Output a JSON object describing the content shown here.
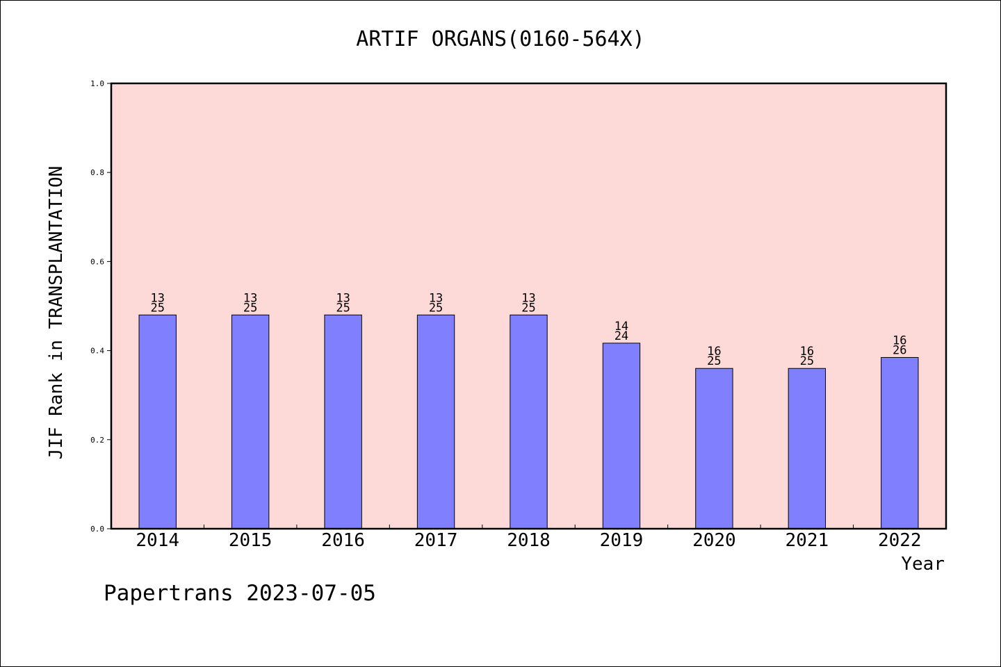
{
  "chart_data": {
    "type": "bar",
    "title": "ARTIF ORGANS(0160-564X)",
    "xlabel": "Year",
    "ylabel": "JIF Rank in TRANSPLANTATION",
    "ylim": [
      0.0,
      1.0
    ],
    "yticks": [
      "0.0",
      "0.2",
      "0.4",
      "0.6",
      "0.8",
      "1.0"
    ],
    "categories": [
      "2014",
      "2015",
      "2016",
      "2017",
      "2018",
      "2019",
      "2020",
      "2021",
      "2022"
    ],
    "values": [
      0.48,
      0.48,
      0.48,
      0.48,
      0.48,
      0.4167,
      0.36,
      0.36,
      0.3846
    ],
    "rank_labels": [
      {
        "rank": "13",
        "total": "25"
      },
      {
        "rank": "13",
        "total": "25"
      },
      {
        "rank": "13",
        "total": "25"
      },
      {
        "rank": "13",
        "total": "25"
      },
      {
        "rank": "13",
        "total": "25"
      },
      {
        "rank": "14",
        "total": "24"
      },
      {
        "rank": "16",
        "total": "25"
      },
      {
        "rank": "16",
        "total": "25"
      },
      {
        "rank": "16",
        "total": "26"
      }
    ],
    "grid": false,
    "colors": {
      "plot_background": "#fddad7",
      "bar_fill": "#8080ff",
      "bar_stroke": "#000000"
    }
  },
  "footer": {
    "text": "Papertrans 2023-07-05"
  }
}
